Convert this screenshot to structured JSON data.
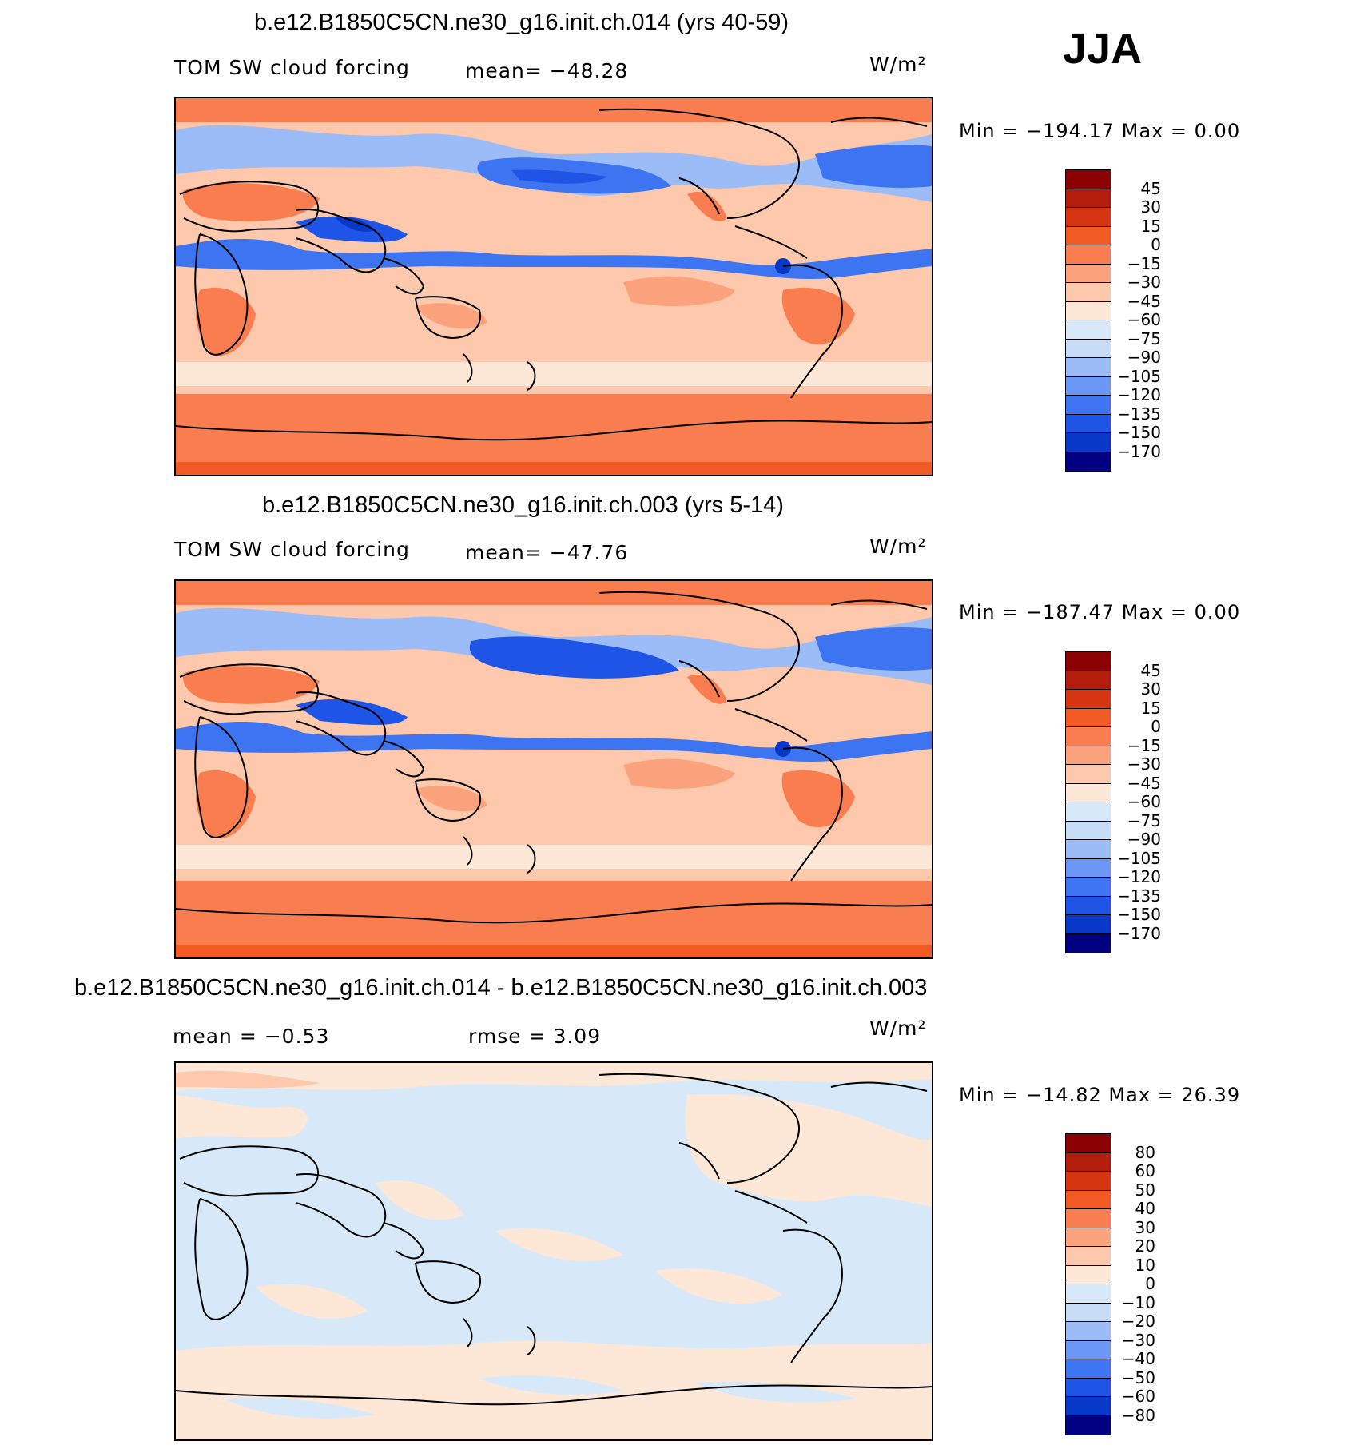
{
  "season": "JJA",
  "colors": {
    "scale": [
      "#000080",
      "#0020a0",
      "#0838c8",
      "#1f55e6",
      "#3d74f2",
      "#6a97f5",
      "#9bbcf6",
      "#c6dcf7",
      "#d7e9f8",
      "#fde8d8",
      "#fdc8ab",
      "#fca37d",
      "#f97d4e",
      "#f25a24",
      "#d53510",
      "#b21c0a",
      "#8b0000"
    ],
    "land_outline": "#000000"
  },
  "panels": [
    {
      "title": "b.e12.B1850C5CN.ne30_g16.init.ch.014 (yrs 40-59)",
      "left_label": "TOM SW cloud forcing",
      "center_label": "mean= −48.28",
      "units": "W/m²",
      "minmax": "Min = −194.17 Max =    0.00",
      "ticks": [
        "45",
        "30",
        "15",
        "0",
        "−15",
        "−30",
        "−45",
        "−60",
        "−75",
        "−90",
        "−105",
        "−120",
        "−135",
        "−150",
        "−170"
      ]
    },
    {
      "title": "b.e12.B1850C5CN.ne30_g16.init.ch.003 (yrs 5-14)",
      "left_label": "TOM SW cloud forcing",
      "center_label": "mean= −47.76",
      "units": "W/m²",
      "minmax": "Min = −187.47 Max =    0.00",
      "ticks": [
        "45",
        "30",
        "15",
        "0",
        "−15",
        "−30",
        "−45",
        "−60",
        "−75",
        "−90",
        "−105",
        "−120",
        "−135",
        "−150",
        "−170"
      ]
    },
    {
      "title": "b.e12.B1850C5CN.ne30_g16.init.ch.014 - b.e12.B1850C5CN.ne30_g16.init.ch.003",
      "left_label": "mean =    −0.53",
      "center_label": "rmse =     3.09",
      "units": "W/m²",
      "minmax": "Min = −14.82 Max =   26.39",
      "ticks": [
        "80",
        "60",
        "50",
        "40",
        "30",
        "20",
        "10",
        "0",
        "−10",
        "−20",
        "−30",
        "−40",
        "−50",
        "−60",
        "−80"
      ]
    }
  ]
}
